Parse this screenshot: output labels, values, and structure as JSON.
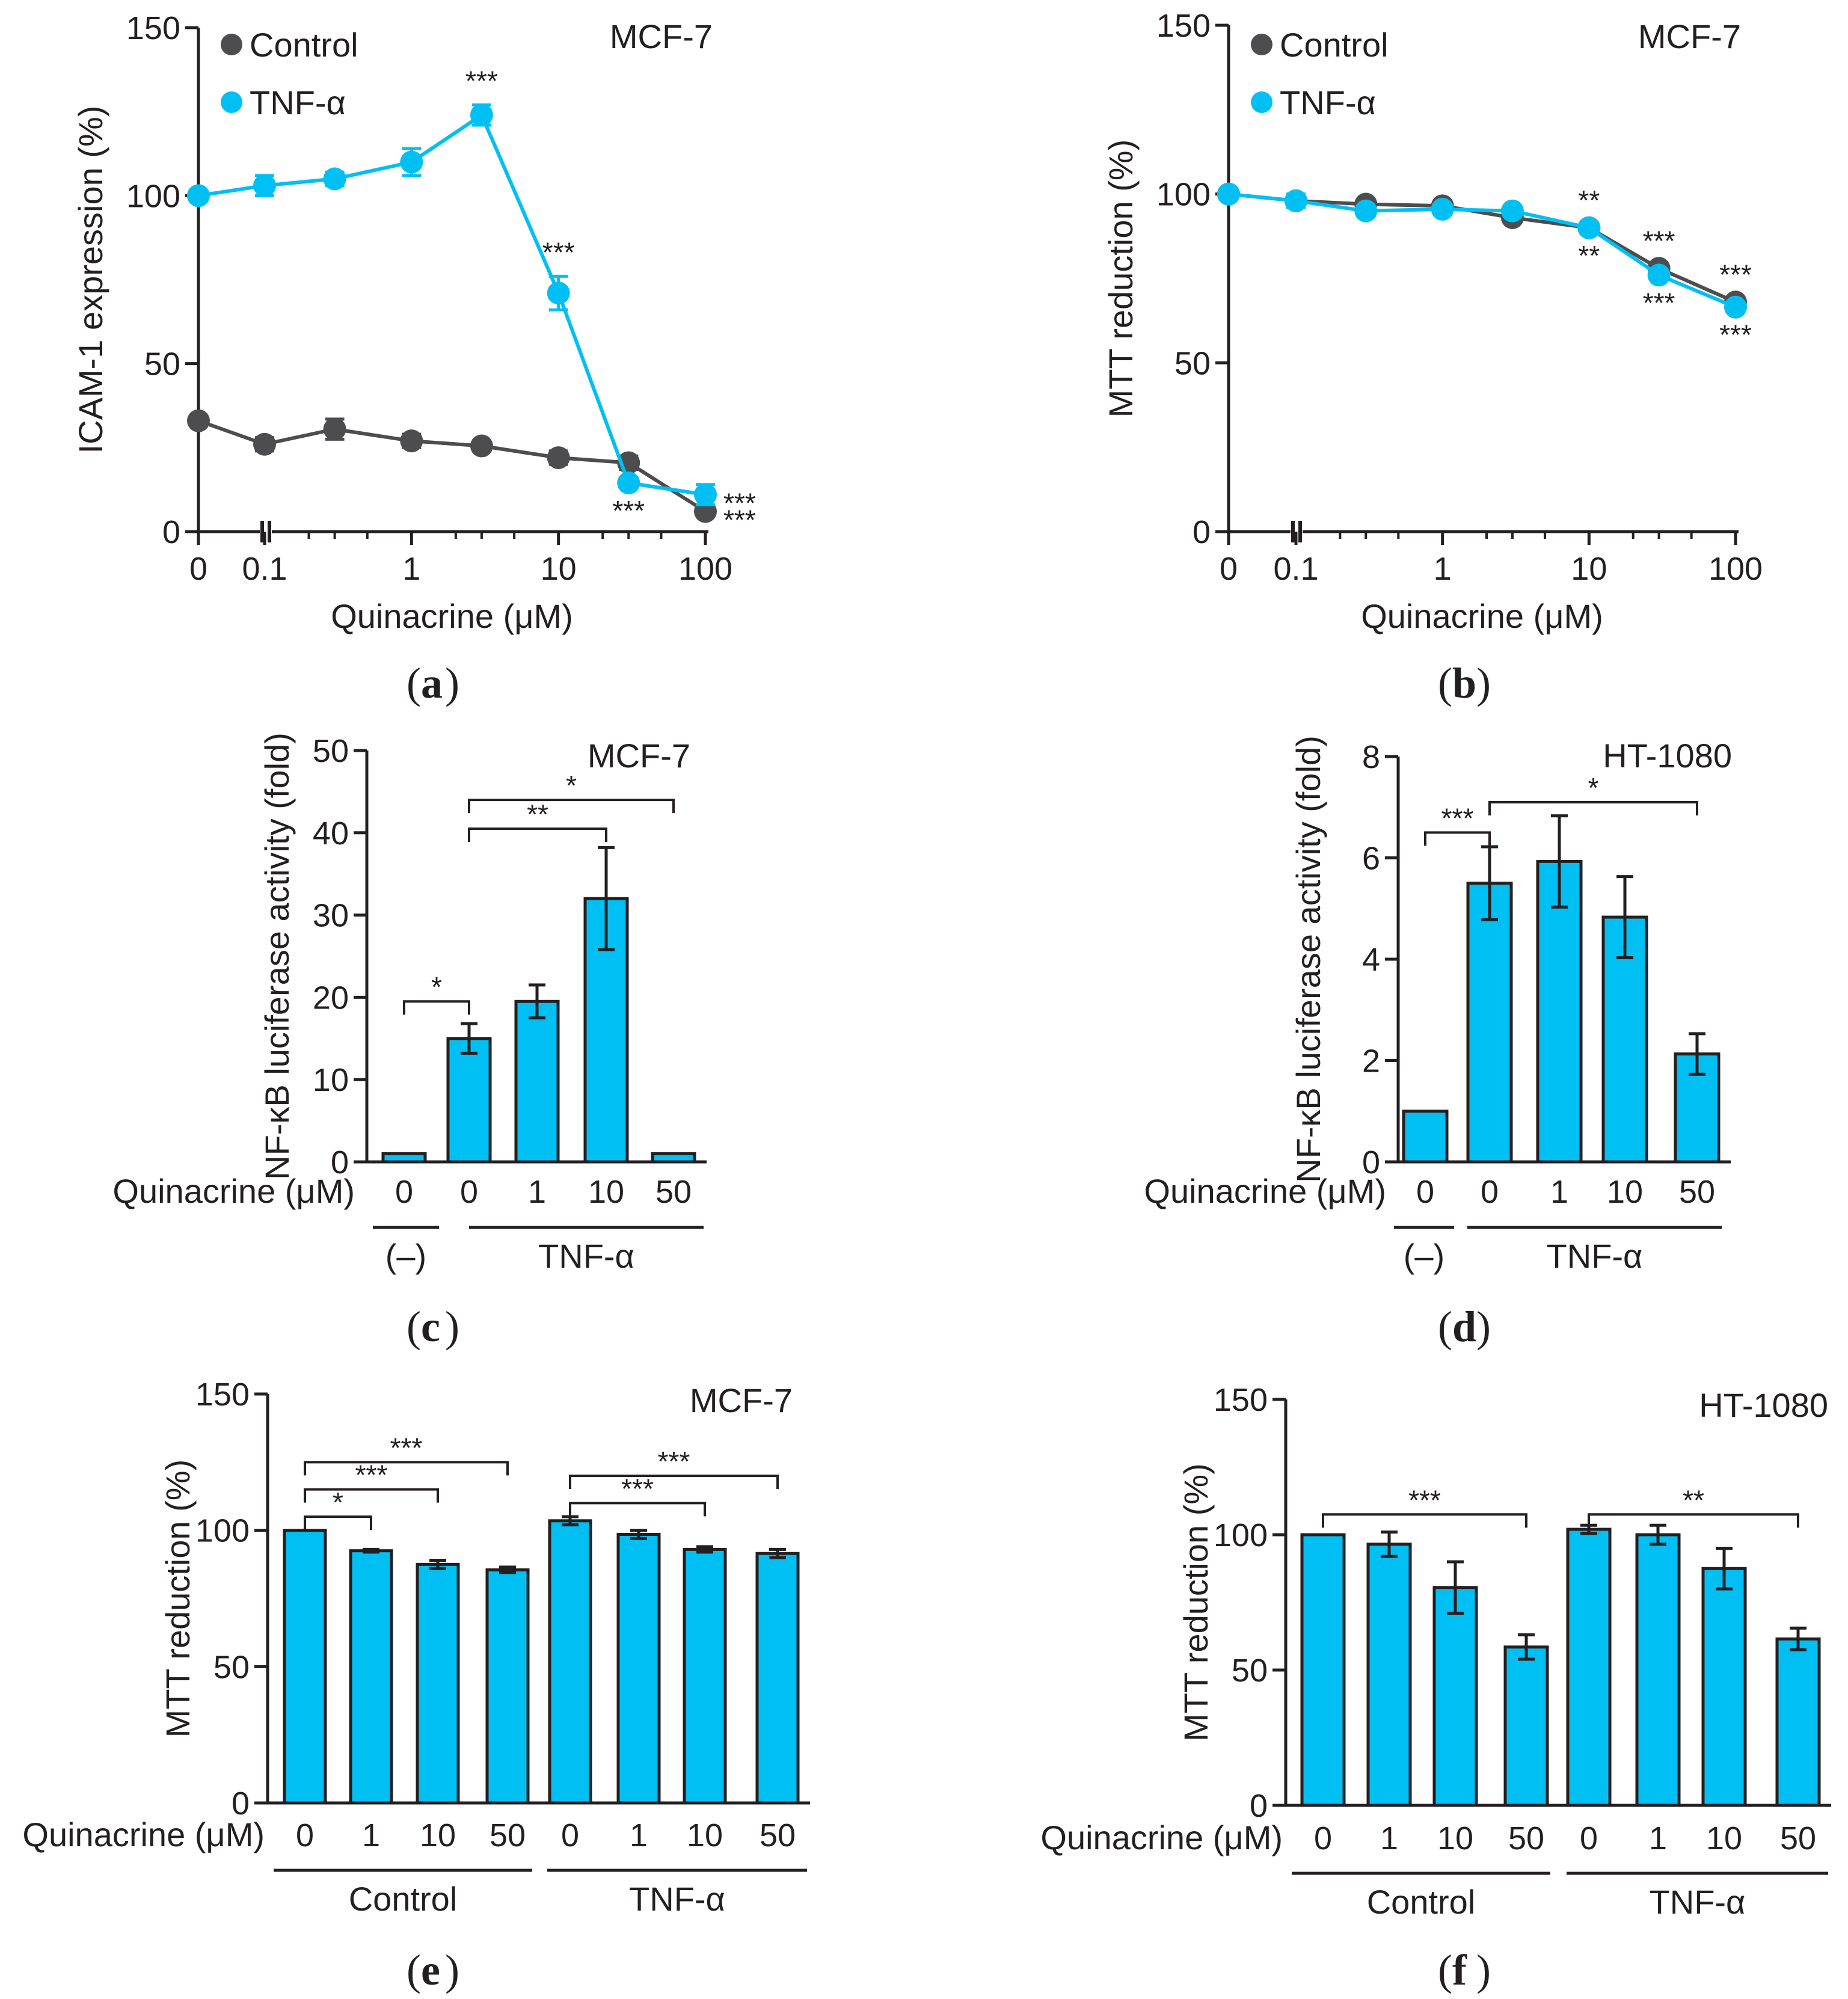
{
  "colors": {
    "control": "#4d4d4f",
    "tnf": "#00c0f3",
    "axis": "#231f20"
  },
  "chart_data": [
    {
      "id": "a",
      "type": "line",
      "caption": "a",
      "cell_line": "MCF-7",
      "ylabel": "ICAM-1 expression (%)",
      "xlabel": "Quinacrine (μM)",
      "ylim": [
        0,
        150
      ],
      "yticks": [
        "0",
        "50",
        "100",
        "150"
      ],
      "xticks": [
        "0",
        "0.1",
        "1",
        "10",
        "100"
      ],
      "xscale": "log",
      "legend": [
        "Control",
        "TNF-α"
      ],
      "series": [
        {
          "name": "Control",
          "x": [
            0,
            0.1,
            0.3,
            1,
            3,
            10,
            30,
            100
          ],
          "y": [
            33,
            26,
            30.5,
            27,
            25.5,
            22,
            20.5,
            6
          ],
          "err": [
            0,
            2,
            3,
            2,
            1.5,
            2,
            2,
            1
          ]
        },
        {
          "name": "TNF-α",
          "x": [
            0,
            0.1,
            0.3,
            1,
            3,
            10,
            30,
            100
          ],
          "y": [
            100,
            103,
            105,
            110,
            124,
            71,
            14.5,
            11
          ],
          "err": [
            0,
            3,
            2,
            4,
            3,
            5,
            1.5,
            3
          ]
        }
      ],
      "annotations": [
        {
          "text": "***",
          "series": "TNF-α",
          "x": 3,
          "pos": "above"
        },
        {
          "text": "***",
          "series": "TNF-α",
          "x": 10,
          "pos": "above"
        },
        {
          "text": "***",
          "series": "TNF-α",
          "x": 30,
          "pos": "below"
        },
        {
          "text": "***",
          "series": "TNF-α",
          "x": 100,
          "pos": "right"
        },
        {
          "text": "***",
          "series": "Control",
          "x": 100,
          "pos": "right"
        }
      ]
    },
    {
      "id": "b",
      "type": "line",
      "caption": "b",
      "cell_line": "MCF-7",
      "ylabel": "MTT reduction (%)",
      "xlabel": "Quinacrine (μM)",
      "ylim": [
        0,
        150
      ],
      "yticks": [
        "0",
        "50",
        "100",
        "150"
      ],
      "xticks": [
        "0",
        "0.1",
        "1",
        "10",
        "100"
      ],
      "xscale": "log",
      "legend": [
        "Control",
        "TNF-α"
      ],
      "series": [
        {
          "name": "Control",
          "x": [
            0,
            0.1,
            0.3,
            1,
            3,
            10,
            30,
            100
          ],
          "y": [
            100,
            98,
            97,
            96.5,
            93,
            90,
            78,
            68
          ],
          "err": [
            0,
            1,
            1,
            1,
            1,
            1,
            1,
            1
          ]
        },
        {
          "name": "TNF-α",
          "x": [
            0,
            0.1,
            0.3,
            1,
            3,
            10,
            30,
            100
          ],
          "y": [
            100,
            98,
            95,
            95.5,
            95,
            90,
            76,
            66.5
          ],
          "err": [
            0,
            2,
            1,
            1,
            1,
            1,
            1,
            1
          ]
        }
      ],
      "annotations": [
        {
          "text": "**",
          "series": "Control",
          "x": 10,
          "pos": "above"
        },
        {
          "text": "**",
          "series": "TNF-α",
          "x": 10,
          "pos": "below"
        },
        {
          "text": "***",
          "series": "Control",
          "x": 30,
          "pos": "above"
        },
        {
          "text": "***",
          "series": "TNF-α",
          "x": 30,
          "pos": "below"
        },
        {
          "text": "***",
          "series": "Control",
          "x": 100,
          "pos": "above"
        },
        {
          "text": "***",
          "series": "TNF-α",
          "x": 100,
          "pos": "below"
        }
      ]
    },
    {
      "id": "c",
      "type": "bar",
      "caption": "c",
      "cell_line": "MCF-7",
      "ylabel": "NF-κB luciferase activity (fold)",
      "xlabel": "Quinacrine (μM)",
      "ylim": [
        0,
        50
      ],
      "yticks": [
        "0",
        "10",
        "20",
        "30",
        "40",
        "50"
      ],
      "categories": [
        "0",
        "0",
        "1",
        "10",
        "50"
      ],
      "values": [
        1,
        15,
        19.5,
        32,
        1
      ],
      "err": [
        0,
        1.8,
        2,
        6.2,
        0
      ],
      "groups": [
        {
          "label": "(–)",
          "from": 0,
          "to": 0
        },
        {
          "label": "TNF-α",
          "from": 1,
          "to": 4
        }
      ],
      "brackets": [
        {
          "from": 0,
          "to": 1,
          "text": "*",
          "y": 19.5
        },
        {
          "from": 1,
          "to": 3,
          "text": "**",
          "y": 40.5
        },
        {
          "from": 1,
          "to": 4,
          "text": "*",
          "y": 44
        }
      ]
    },
    {
      "id": "d",
      "type": "bar",
      "caption": "d",
      "cell_line": "HT-1080",
      "ylabel": "NF-κB luciferase activity (fold)",
      "xlabel": "Quinacrine (μM)",
      "ylim": [
        0,
        8
      ],
      "yticks": [
        "0",
        "2",
        "4",
        "6",
        "8"
      ],
      "categories": [
        "0",
        "0",
        "1",
        "10",
        "50"
      ],
      "values": [
        1,
        5.5,
        5.93,
        4.83,
        2.13
      ],
      "err": [
        0,
        0.72,
        0.9,
        0.8,
        0.4
      ],
      "groups": [
        {
          "label": "(–)",
          "from": 0,
          "to": 0
        },
        {
          "label": "TNF-α",
          "from": 1,
          "to": 4
        }
      ],
      "brackets": [
        {
          "from": 0,
          "to": 1,
          "text": "***",
          "y": 6.5
        },
        {
          "from": 1,
          "to": 4,
          "text": "*",
          "y": 7.1
        }
      ]
    },
    {
      "id": "e",
      "type": "bar",
      "caption": "e",
      "cell_line": "MCF-7",
      "ylabel": "MTT reduction (%)",
      "xlabel": "Quinacrine (μM)",
      "ylim": [
        0,
        150
      ],
      "yticks": [
        "0",
        "50",
        "100",
        "150"
      ],
      "categories": [
        "0",
        "1",
        "10",
        "50",
        "0",
        "1",
        "10",
        "50"
      ],
      "values": [
        100,
        92.5,
        87.5,
        85.5,
        103.5,
        98.5,
        93,
        91.5
      ],
      "err": [
        0,
        0.5,
        1.5,
        1,
        1.5,
        1.5,
        1,
        1.5
      ],
      "groups": [
        {
          "label": "Control",
          "from": 0,
          "to": 3
        },
        {
          "label": "TNF-α",
          "from": 4,
          "to": 7
        }
      ],
      "brackets": [
        {
          "from": 0,
          "to": 1,
          "text": "*",
          "y": 105
        },
        {
          "from": 0,
          "to": 2,
          "text": "***",
          "y": 115
        },
        {
          "from": 0,
          "to": 3,
          "text": "***",
          "y": 125
        },
        {
          "from": 4,
          "to": 6,
          "text": "***",
          "y": 110
        },
        {
          "from": 4,
          "to": 7,
          "text": "***",
          "y": 120
        }
      ]
    },
    {
      "id": "f",
      "type": "bar",
      "caption": "f",
      "cell_line": "HT-1080",
      "ylabel": "MTT reduction (%)",
      "xlabel": "Quinacrine (μM)",
      "ylim": [
        0,
        150
      ],
      "yticks": [
        "0",
        "50",
        "100",
        "150"
      ],
      "categories": [
        "0",
        "1",
        "10",
        "50",
        "0",
        "1",
        "10",
        "50"
      ],
      "values": [
        100,
        96.5,
        80.5,
        58.5,
        102,
        100,
        87.5,
        61.5
      ],
      "err": [
        0,
        4.5,
        9.5,
        4.5,
        1.5,
        3.5,
        7.5,
        4
      ],
      "groups": [
        {
          "label": "Control",
          "from": 0,
          "to": 3
        },
        {
          "label": "TNF-α",
          "from": 4,
          "to": 7
        }
      ],
      "brackets": [
        {
          "from": 0,
          "to": 3,
          "text": "***",
          "y": 107.5
        },
        {
          "from": 4,
          "to": 7,
          "text": "**",
          "y": 107.5
        }
      ]
    }
  ]
}
